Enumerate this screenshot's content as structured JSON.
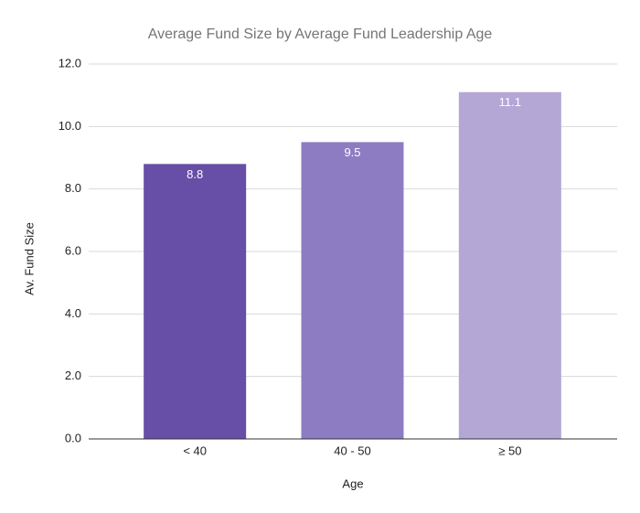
{
  "chart_data": {
    "type": "bar",
    "title": "Average Fund Size by Average Fund Leadership Age",
    "x_label": "Age",
    "y_label": "Av. Fund Size",
    "categories": [
      "< 40",
      "40 - 50",
      "≥ 50"
    ],
    "values": [
      8.8,
      9.5,
      11.1
    ],
    "colors": [
      "#674ea7",
      "#8e7cc3",
      "#b4a7d6"
    ],
    "ylim": [
      0,
      12
    ],
    "yticks": [
      {
        "value": 0,
        "label": "0.0"
      },
      {
        "value": 2,
        "label": "2.0"
      },
      {
        "value": 4,
        "label": "4.0"
      },
      {
        "value": 6,
        "label": "6.0"
      },
      {
        "value": 8,
        "label": "8.0"
      },
      {
        "value": 10,
        "label": "10.0"
      },
      {
        "value": 12,
        "label": "12.0"
      }
    ],
    "grid": true
  }
}
